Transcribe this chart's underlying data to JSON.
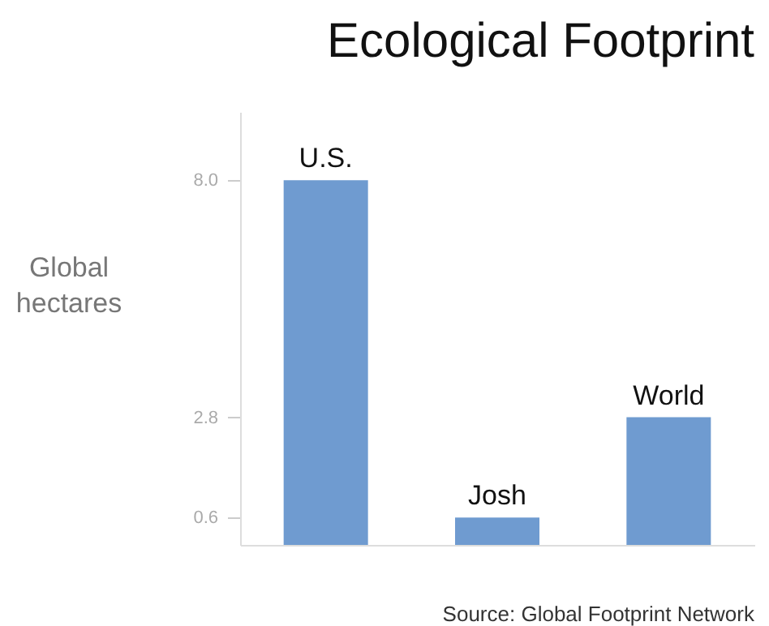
{
  "chart_data": {
    "type": "bar",
    "title": "Ecological Footprint",
    "ylabel": "Global hectares",
    "categories": [
      "U.S.",
      "Josh",
      "World"
    ],
    "values": [
      8.0,
      0.6,
      2.8
    ],
    "color": "#6f9bd0",
    "ylim": [
      0,
      9.5
    ],
    "yticks": [
      {
        "value": 0.6,
        "label": "0.6"
      },
      {
        "value": 2.8,
        "label": "2.8"
      },
      {
        "value": 8,
        "label": "8.0"
      }
    ],
    "grid": false,
    "annotations": [
      "Source: Global Footprint Network"
    ]
  }
}
